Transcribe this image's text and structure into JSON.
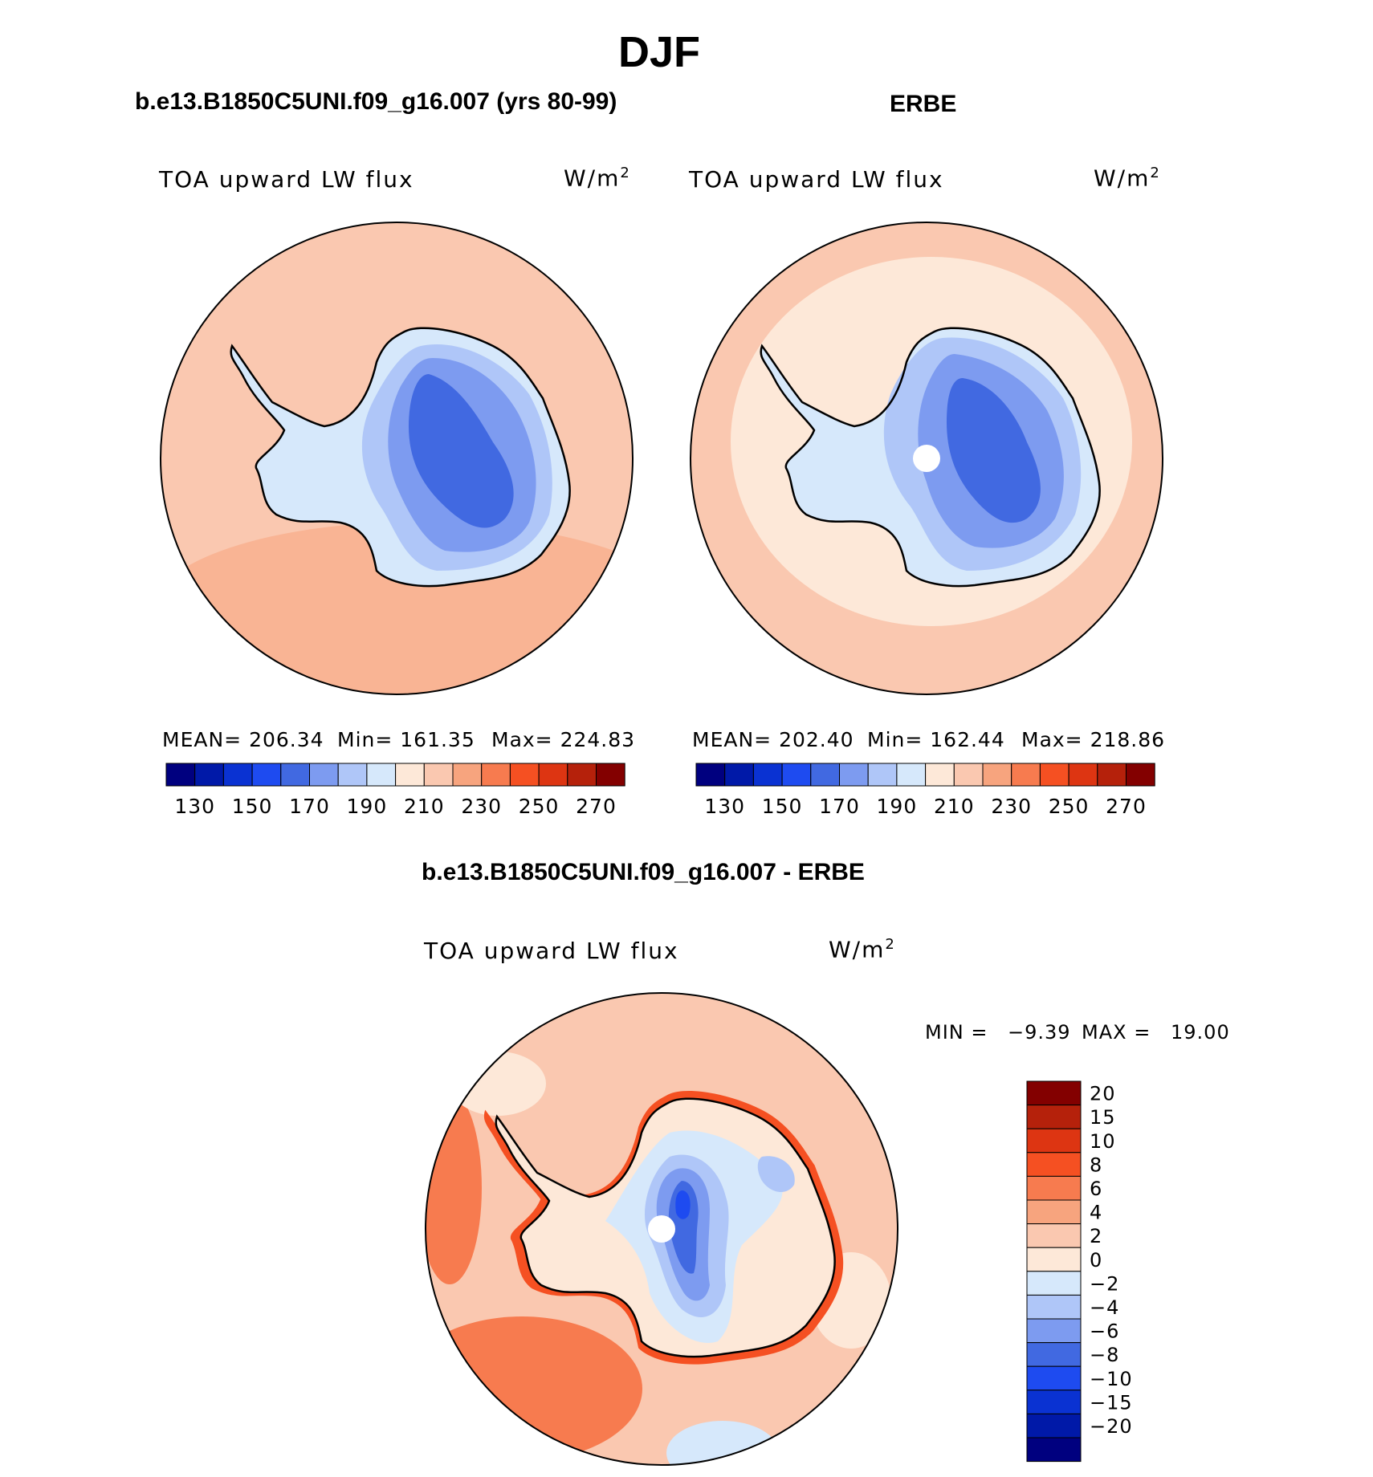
{
  "figure": {
    "title": "DJF",
    "diff_title": "b.e13.B1850C5UNI.f09_g16.007 - ERBE"
  },
  "panels": [
    {
      "title": "b.e13.B1850C5UNI.f09_g16.007 (yrs 80-99)",
      "field": "TOA upward LW flux",
      "units": "W/m",
      "units_sup": "2",
      "stats": {
        "mean": "MEAN=  206.34",
        "min": "Min=  161.35",
        "max": "Max=  224.83"
      },
      "has_pole_mask": false
    },
    {
      "title": "ERBE",
      "field": "TOA upward LW flux",
      "units": "W/m",
      "units_sup": "2",
      "stats": {
        "mean": "MEAN=  202.40",
        "min": "Min=  162.44",
        "max": "Max=  218.86"
      },
      "has_pole_mask": true
    }
  ],
  "diff_panel": {
    "field": "TOA upward LW flux",
    "units": "W/m",
    "units_sup": "2",
    "stats": {
      "min_label": "MIN  =",
      "min_value": "−9.39",
      "max_label": "MAX  =",
      "max_value": "19.00"
    },
    "has_pole_mask": true
  },
  "chart_data": [
    {
      "type": "heatmap",
      "projection": "south-polar-stereographic",
      "title": "b.e13.B1850C5UNI.f09_g16.007 (yrs 80-99)",
      "variable": "TOA upward LW flux",
      "units": "W/m2",
      "mean": 206.34,
      "min": 161.35,
      "max": 224.83,
      "levels": [
        130,
        140,
        150,
        160,
        170,
        180,
        190,
        200,
        210,
        220,
        230,
        240,
        250,
        260,
        270
      ],
      "level_labels": [
        "130",
        "150",
        "170",
        "190",
        "210",
        "230",
        "250",
        "270"
      ],
      "colors": [
        "#00007f",
        "#0019a8",
        "#0a32d2",
        "#1e4bf0",
        "#4169e1",
        "#7d9bf0",
        "#afc6f8",
        "#d6e8fb",
        "#fde8d8",
        "#fac8b0",
        "#f7a47e",
        "#f77b4f",
        "#f55022",
        "#dd3512",
        "#b5210b",
        "#830000"
      ]
    },
    {
      "type": "heatmap",
      "projection": "south-polar-stereographic",
      "title": "ERBE",
      "variable": "TOA upward LW flux",
      "units": "W/m2",
      "mean": 202.4,
      "min": 162.44,
      "max": 218.86,
      "levels": [
        130,
        140,
        150,
        160,
        170,
        180,
        190,
        200,
        210,
        220,
        230,
        240,
        250,
        260,
        270
      ],
      "level_labels": [
        "130",
        "150",
        "170",
        "190",
        "210",
        "230",
        "250",
        "270"
      ],
      "colors": [
        "#00007f",
        "#0019a8",
        "#0a32d2",
        "#1e4bf0",
        "#4169e1",
        "#7d9bf0",
        "#afc6f8",
        "#d6e8fb",
        "#fde8d8",
        "#fac8b0",
        "#f7a47e",
        "#f77b4f",
        "#f55022",
        "#dd3512",
        "#b5210b",
        "#830000"
      ]
    },
    {
      "type": "heatmap",
      "projection": "south-polar-stereographic",
      "title": "b.e13.B1850C5UNI.f09_g16.007 - ERBE",
      "variable": "TOA upward LW flux",
      "units": "W/m2",
      "min": -9.39,
      "max": 19.0,
      "levels": [
        -20,
        -15,
        -10,
        -8,
        -6,
        -4,
        -2,
        0,
        2,
        4,
        6,
        8,
        10,
        15,
        20
      ],
      "level_labels": [
        "−20",
        "−15",
        "−10",
        "−8",
        "−6",
        "−4",
        "−2",
        "0",
        "2",
        "4",
        "6",
        "8",
        "10",
        "15",
        "20"
      ],
      "colors": [
        "#00007f",
        "#0019a8",
        "#0a32d2",
        "#1e4bf0",
        "#4169e1",
        "#7d9bf0",
        "#afc6f8",
        "#d6e8fb",
        "#fde8d8",
        "#fac8b0",
        "#f7a47e",
        "#f77b4f",
        "#f55022",
        "#dd3512",
        "#b5210b",
        "#830000"
      ]
    }
  ]
}
